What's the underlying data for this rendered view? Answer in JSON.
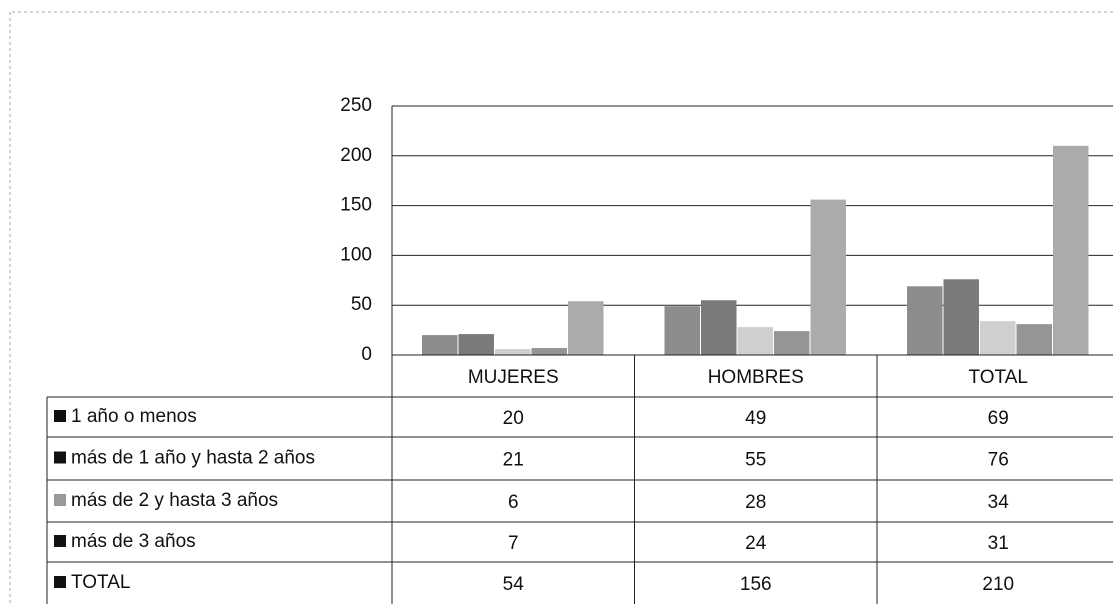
{
  "chart_data": {
    "type": "bar",
    "categories": [
      "MUJERES",
      "HOMBRES",
      "TOTAL"
    ],
    "series": [
      {
        "name": "1 año o menos",
        "color": "#8c8c8c",
        "values": [
          20,
          49,
          69
        ]
      },
      {
        "name": "más de 1 año y hasta 2 años",
        "color": "#7a7a7a",
        "values": [
          21,
          55,
          76
        ]
      },
      {
        "name": "más de 2 y hasta 3 años",
        "color": "#cfcfcf",
        "values": [
          6,
          28,
          34
        ]
      },
      {
        "name": "más de 3 años",
        "color": "#959595",
        "values": [
          7,
          24,
          31
        ]
      },
      {
        "name": "TOTAL",
        "color": "#ababab",
        "values": [
          54,
          156,
          210
        ]
      }
    ],
    "ylim": [
      0,
      250
    ],
    "yticks": [
      0,
      50,
      100,
      150,
      200,
      250
    ],
    "grid": true
  }
}
